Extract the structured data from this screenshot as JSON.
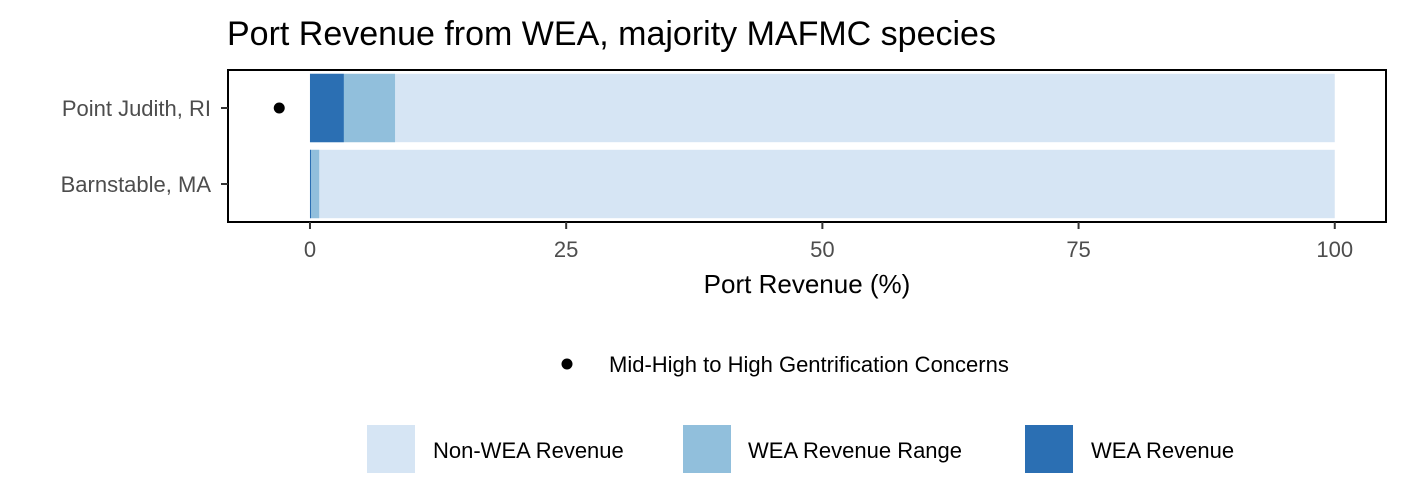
{
  "chart_data": {
    "type": "bar",
    "orientation": "horizontal",
    "stacked": true,
    "title": "Port Revenue from WEA, majority MAFMC species",
    "xlabel": "Port Revenue (%)",
    "ylabel": "",
    "xlim": [
      -8,
      105
    ],
    "x_ticks": [
      0,
      25,
      50,
      75,
      100
    ],
    "x_tick_labels": [
      "0",
      "25",
      "50",
      "75",
      "100"
    ],
    "categories": [
      "Point Judith, RI",
      "Barnstable, MA"
    ],
    "series": [
      {
        "name": "Non-WEA Revenue",
        "color": "#d6e5f4",
        "values": [
          100,
          100
        ]
      },
      {
        "name": "WEA Revenue Range",
        "color": "#91bfdc",
        "values": [
          8.3,
          0.9
        ]
      },
      {
        "name": "WEA Revenue",
        "color": "#2b6fb3",
        "values": [
          3.3,
          0.1
        ]
      }
    ],
    "gentrification_markers": [
      {
        "category": "Point Judith, RI",
        "x": -3
      }
    ],
    "marker_legend": {
      "label": "Mid-High to High Gentrification Concerns",
      "color": "#000000"
    },
    "legend_position": "bottom",
    "grid": false
  }
}
